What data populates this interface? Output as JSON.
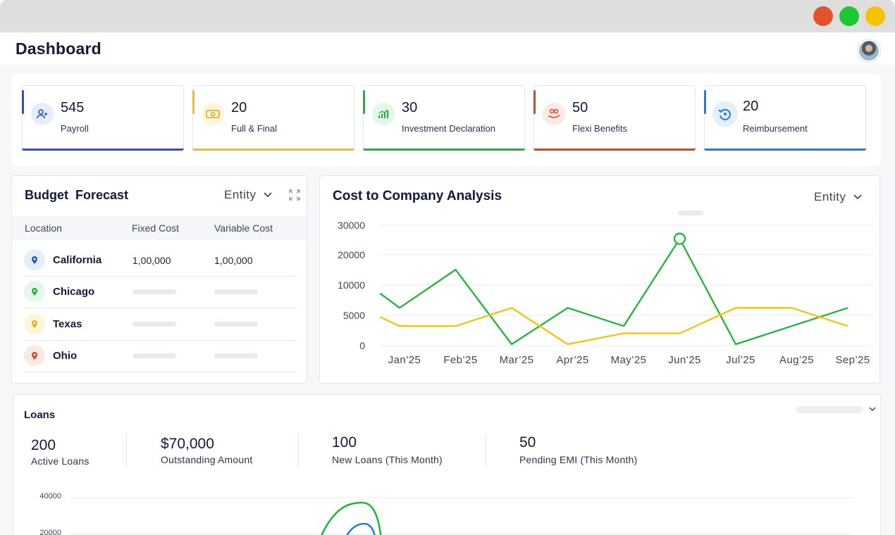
{
  "window": {
    "controls": [
      "close",
      "maximize",
      "minimize"
    ]
  },
  "header": {
    "title": "Dashboard"
  },
  "stats": [
    {
      "value": "545",
      "label": "Payroll",
      "color": "#2352d8",
      "icon": "payroll-icon"
    },
    {
      "value": "20",
      "label": "Full & Final",
      "color": "#f4c20d",
      "icon": "cash-icon"
    },
    {
      "value": "30",
      "label": "Investment Declaration",
      "color": "#1fb53a",
      "icon": "growth-chart-icon"
    },
    {
      "value": "50",
      "label": "Flexi Benefits",
      "color": "#d9441f",
      "icon": "hand-coins-icon"
    },
    {
      "value": "20",
      "label": "Reimbursement",
      "color": "#1e7be0",
      "icon": "refund-icon"
    }
  ],
  "budget": {
    "title": "Budget  Forecast",
    "entity": "Entity",
    "columns": [
      "Location",
      "Fixed Cost",
      "Variable Cost"
    ],
    "rows": [
      {
        "location": "California",
        "fixed": "1,00,000",
        "variable": "1,00,000",
        "color": "#2352d8"
      },
      {
        "location": "Chicago",
        "fixed": "",
        "variable": "",
        "color": "#1fb53a"
      },
      {
        "location": "Texas",
        "fixed": "",
        "variable": "",
        "color": "#f4c20d"
      },
      {
        "location": "Ohio",
        "fixed": "",
        "variable": "",
        "color": "#d9441f"
      }
    ]
  },
  "ctc": {
    "title": "Cost to Company Analysis",
    "entity": "Entity"
  },
  "chart_data": [
    {
      "type": "line",
      "title": "Cost to Company Analysis",
      "x": [
        "Jan’25",
        "Feb’25",
        "Mar’25",
        "Apr’25",
        "May’25",
        "Jun’25",
        "Jul’25",
        "Aug’25",
        "Sep’25"
      ],
      "ylim": [
        0,
        30000
      ],
      "yticks": [
        "30000",
        "20000",
        "10000",
        "5000",
        "0"
      ],
      "grid": true,
      "series": [
        {
          "color": "#1fb53a",
          "values": [
            [
              -0.35,
              14000
            ],
            [
              0,
              10000
            ],
            [
              1,
              20500
            ],
            [
              2,
              0
            ],
            [
              3,
              10000
            ],
            [
              4,
              5000
            ],
            [
              5,
              29000
            ],
            [
              6,
              0
            ],
            [
              7,
              5000
            ],
            [
              8,
              10000
            ]
          ]
        },
        {
          "color": "#f4c20d",
          "values": [
            [
              -0.35,
              7500
            ],
            [
              0,
              5000
            ],
            [
              1,
              5000
            ],
            [
              2,
              10000
            ],
            [
              3,
              0
            ],
            [
              4,
              3000
            ],
            [
              5,
              3000
            ],
            [
              6,
              10000
            ],
            [
              7,
              10000
            ],
            [
              8,
              5000
            ]
          ]
        }
      ]
    },
    {
      "type": "line",
      "title": "Loans",
      "yticks": [
        "40000",
        "20000"
      ],
      "grid": true,
      "series": [
        {
          "color": "#1fb53a",
          "values": []
        },
        {
          "color": "#1e7be0",
          "values": []
        }
      ]
    }
  ],
  "loans": {
    "title": "Loans",
    "stats": [
      {
        "value": "200",
        "label": "Active Loans"
      },
      {
        "value": "$70,000",
        "label": "Outstanding Amount"
      },
      {
        "value": "100",
        "label": "New Loans (This Month)"
      },
      {
        "value": "50",
        "label": "Pending EMI (This Month)"
      }
    ],
    "yticks": [
      "40000",
      "20000"
    ]
  }
}
